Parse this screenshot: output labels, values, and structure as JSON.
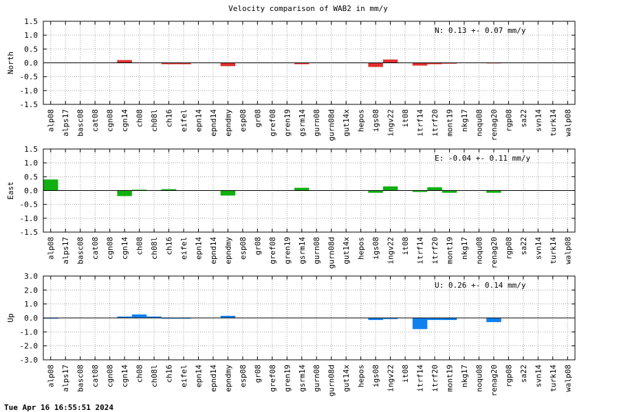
{
  "title": "Velocity comparison of WAB2 in mm/y",
  "footer": "Tue Apr 16 16:55:51 2024",
  "chart_data": [
    {
      "type": "bar",
      "ylabel": "North",
      "color": "#e03030",
      "ylim": [
        -1.5,
        1.5
      ],
      "yticks": [
        -1.5,
        -1.0,
        -0.5,
        0.0,
        0.5,
        1.0,
        1.5
      ],
      "yticklabels": [
        "-1.5",
        "-1.0",
        "-0.5",
        "0.0",
        "0.5",
        "1.0",
        "1.5"
      ],
      "grid": true,
      "stat_text": "N:   0.13 +-  0.07 mm/y",
      "stat_position": "top-right",
      "categories": [
        "alp08",
        "alps17",
        "basc08",
        "cat08",
        "cgn08",
        "cgn14",
        "ch08",
        "ch08l",
        "ch16",
        "eifel",
        "epn14",
        "epnd14",
        "epndmy",
        "esp08",
        "gr08",
        "gref08",
        "gren19",
        "gsrm14",
        "gurn08",
        "gurn08d",
        "gut14x",
        "hepos",
        "igs08",
        "ingv22",
        "it08",
        "itrf14",
        "itrf20",
        "mont19",
        "nkg17",
        "noqu08",
        "renag20",
        "rgp08",
        "sa22",
        "svn14",
        "turk14",
        "walp08"
      ],
      "values": [
        0,
        0,
        0,
        0,
        0,
        0.1,
        0,
        0,
        -0.05,
        -0.05,
        0,
        0,
        -0.12,
        0,
        0,
        0,
        0,
        -0.05,
        0,
        0,
        0,
        0,
        -0.15,
        0.12,
        0,
        -0.1,
        -0.05,
        -0.03,
        0,
        0,
        -0.02,
        0,
        0,
        0,
        0,
        0
      ]
    },
    {
      "type": "bar",
      "ylabel": "East",
      "color": "#10b010",
      "ylim": [
        -1.5,
        1.5
      ],
      "yticks": [
        -1.5,
        -1.0,
        -0.5,
        0.0,
        0.5,
        1.0,
        1.5
      ],
      "yticklabels": [
        "-1.5",
        "-1.0",
        "-0.5",
        "0.0",
        "0.5",
        "1.0",
        "1.5"
      ],
      "grid": true,
      "stat_text": "E:  -0.04 +-  0.11 mm/y",
      "stat_position": "top-right",
      "categories": [
        "alp08",
        "alps17",
        "basc08",
        "cat08",
        "cgn08",
        "cgn14",
        "ch08",
        "ch08l",
        "ch16",
        "eifel",
        "epn14",
        "epnd14",
        "epndmy",
        "esp08",
        "gr08",
        "gref08",
        "gren19",
        "gsrm14",
        "gurn08",
        "gurn08d",
        "gut14x",
        "hepos",
        "igs08",
        "ingv22",
        "it08",
        "itrf14",
        "itrf20",
        "mont19",
        "nkg17",
        "noqu08",
        "renag20",
        "rgp08",
        "sa22",
        "svn14",
        "turk14",
        "walp08"
      ],
      "values": [
        0.4,
        0,
        0,
        0,
        0,
        -0.2,
        0.03,
        0,
        0.05,
        0,
        0,
        0,
        -0.18,
        0,
        0,
        0,
        0,
        0.1,
        0,
        0,
        0,
        0,
        -0.08,
        0.15,
        0,
        -0.05,
        0.12,
        -0.08,
        0,
        0,
        -0.08,
        0,
        0,
        0,
        0,
        0
      ]
    },
    {
      "type": "bar",
      "ylabel": "Up",
      "color": "#1080f0",
      "ylim": [
        -3.0,
        3.0
      ],
      "yticks": [
        -3.0,
        -2.0,
        -1.0,
        0.0,
        1.0,
        2.0,
        3.0
      ],
      "yticklabels": [
        "-3.0",
        "-2.0",
        "-1.0",
        "0.0",
        "1.0",
        "2.0",
        "3.0"
      ],
      "grid": true,
      "stat_text": "U:   0.26 +-  0.14 mm/y",
      "stat_position": "top-right",
      "categories": [
        "alp08",
        "alps17",
        "basc08",
        "cat08",
        "cgn08",
        "cgn14",
        "ch08",
        "ch08l",
        "ch16",
        "eifel",
        "epn14",
        "epnd14",
        "epndmy",
        "esp08",
        "gr08",
        "gref08",
        "gren19",
        "gsrm14",
        "gurn08",
        "gurn08d",
        "gut14x",
        "hepos",
        "igs08",
        "ingv22",
        "it08",
        "itrf14",
        "itrf20",
        "mont19",
        "nkg17",
        "noqu08",
        "renag20",
        "rgp08",
        "sa22",
        "svn14",
        "turk14",
        "walp08"
      ],
      "values": [
        -0.05,
        0,
        0,
        0,
        0,
        0.1,
        0.25,
        0.1,
        -0.05,
        -0.05,
        0,
        0,
        0.15,
        0,
        0,
        0,
        0,
        0,
        0,
        0,
        0,
        0,
        -0.15,
        -0.08,
        0,
        -0.8,
        -0.15,
        -0.15,
        0,
        0,
        -0.3,
        0,
        0,
        0,
        0,
        0
      ]
    }
  ]
}
